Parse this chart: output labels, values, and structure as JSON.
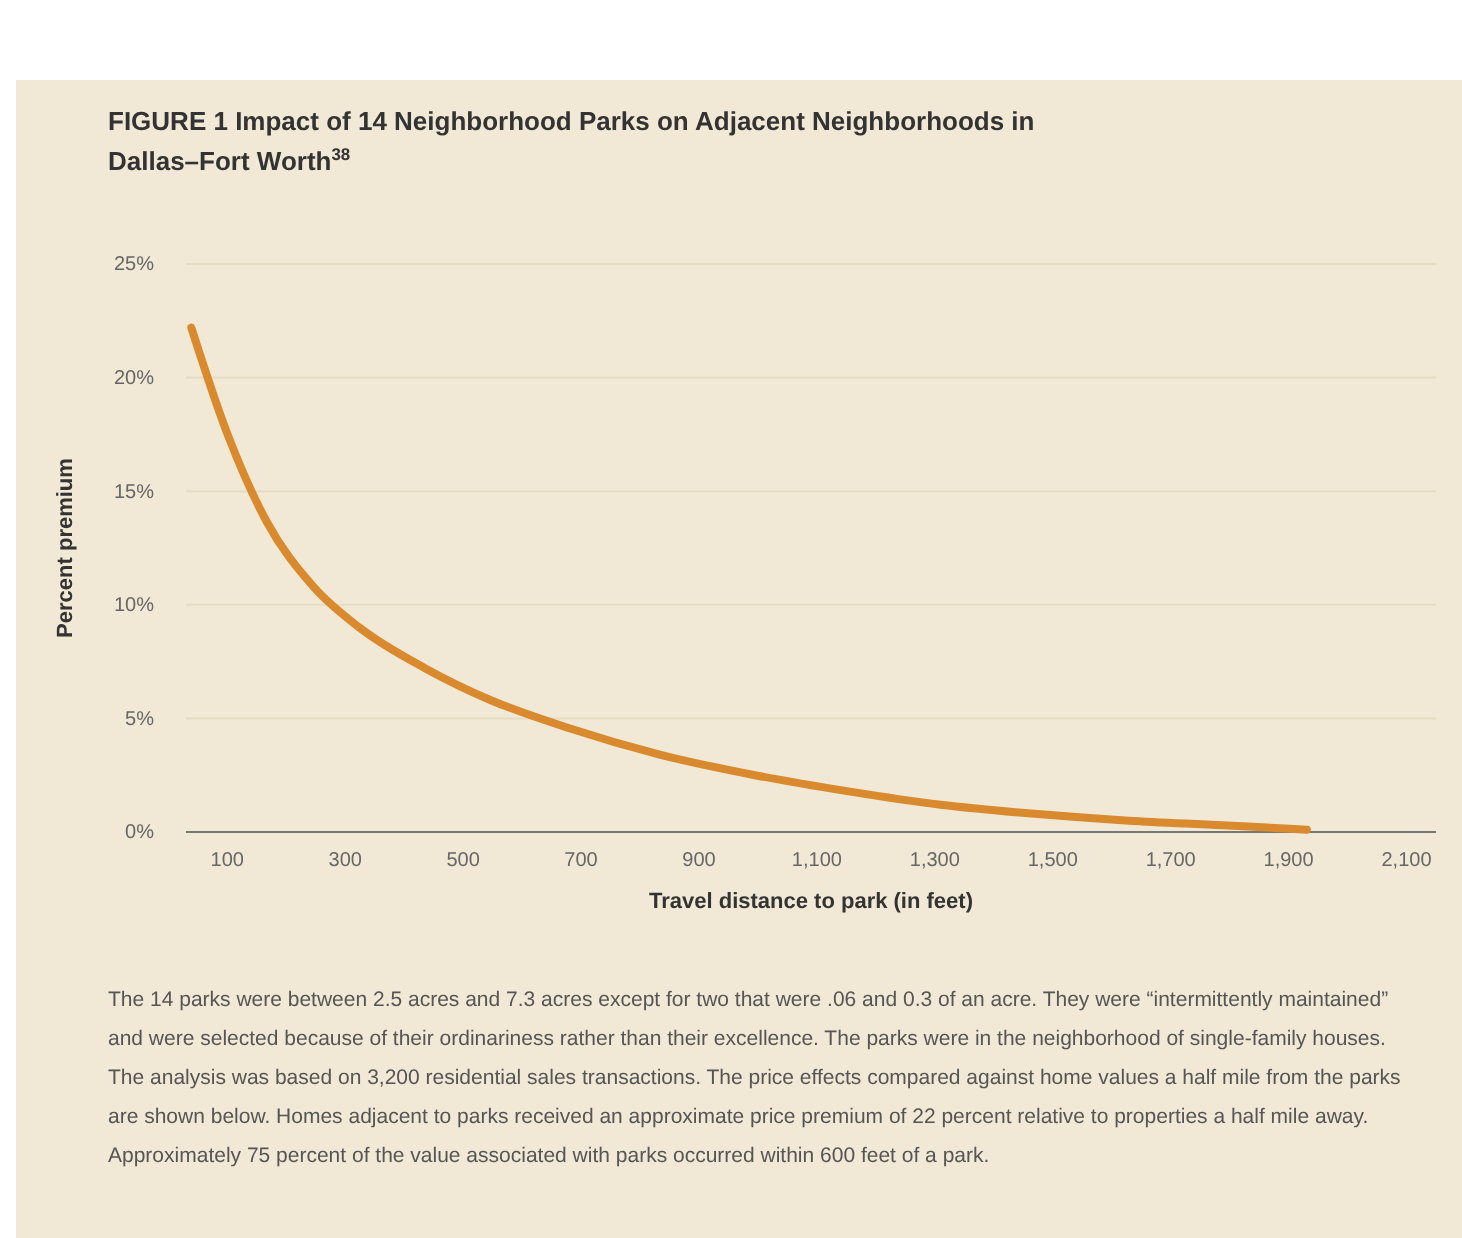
{
  "chart_data": {
    "type": "line",
    "title": "FIGURE 1  Impact of 14 Neighborhood Parks on Adjacent Neighborhoods in Dallas–Fort Worth$^{38}$",
    "xlabel": "Travel distance to park (in feet)",
    "ylabel": "Percent premium",
    "annotations": [
      "The 14 parks were between 2.5 acres and 7.3 acres except for two that were .06 and 0.3 of an acre. They were “intermittently maintained” and were selected because of their ordinariness rather than their excellence. The parks were in the neighborhood of single-family houses. The analysis was based on 3,200 residential sales transactions. The price effects compared against home values a half mile from the parks are shown below. Homes adjacent to parks received an approximate price premium of 22 percent relative to properties a half mile away. Approximately 75 percent of the value associated with parks occurred within 600 feet of a park."
    ],
    "series": [
      {
        "color": "#d98a2e",
        "x": [
          39,
          102,
          166,
          246,
          324,
          436,
          547,
          676,
          835,
          995,
          1151,
          1310,
          1469,
          1629,
          1788,
          1931
        ],
        "values": [
          22.2,
          17.4,
          13.7,
          10.8,
          9.0,
          7.2,
          5.8,
          4.6,
          3.4,
          2.5,
          1.8,
          1.2,
          0.8,
          0.5,
          0.3,
          0.1
        ]
      }
    ],
    "xlim": [
      30,
      2150
    ],
    "xticks": [
      100,
      300,
      500,
      700,
      900,
      {
        "value": 1100,
        "label": "1,100"
      },
      {
        "value": 1300,
        "label": "1,300"
      },
      {
        "value": 1500,
        "label": "1,500"
      },
      {
        "value": 1700,
        "label": "1,700"
      },
      {
        "value": 1900,
        "label": "1,900"
      },
      {
        "value": 2100,
        "label": "2,100"
      }
    ],
    "ylim": [
      0,
      25
    ],
    "yticks": [
      {
        "value": 0,
        "label": "0%"
      },
      {
        "value": 5,
        "label": "5%"
      },
      {
        "value": 10,
        "label": "10%"
      },
      {
        "value": 15,
        "label": "15%"
      },
      {
        "value": 20,
        "label": "20%"
      },
      {
        "value": 25,
        "label": "25%"
      }
    ],
    "grid": "y",
    "marker": "none",
    "line_style": "solid"
  }
}
